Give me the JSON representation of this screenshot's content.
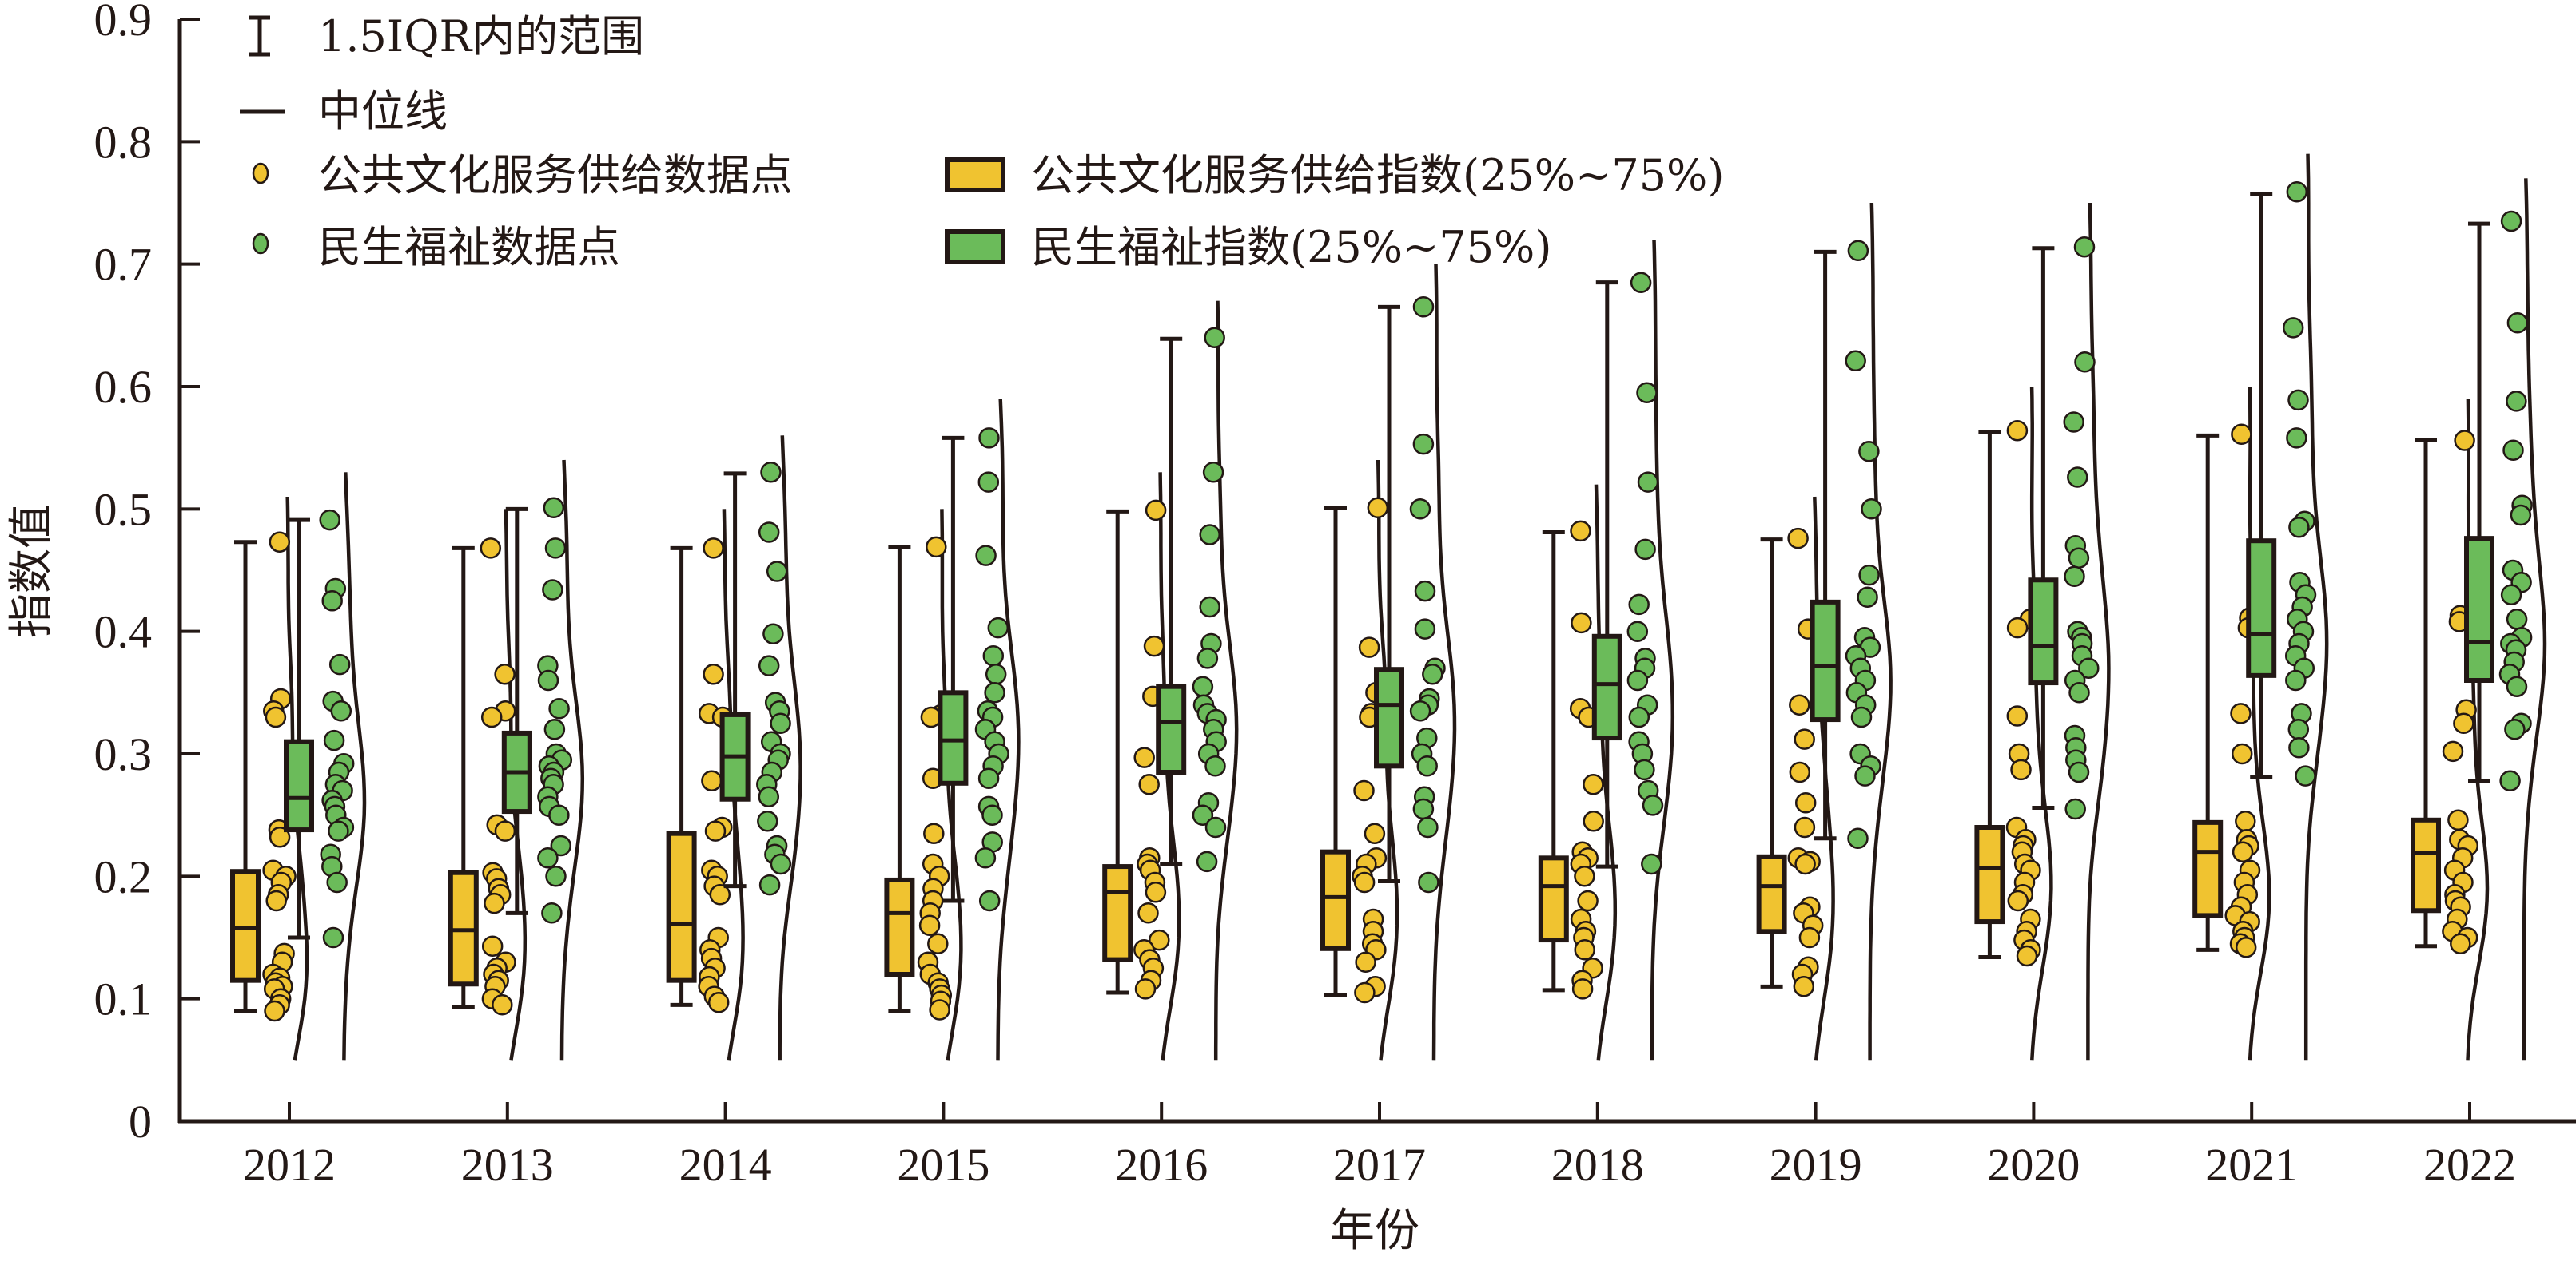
{
  "chart_data": {
    "type": "boxplot",
    "title": "",
    "xlabel": "年份",
    "ylabel": "指数值",
    "ylim": [
      0,
      0.9
    ],
    "yticks": [
      "0",
      "0.1",
      "0.2",
      "0.3",
      "0.4",
      "0.5",
      "0.6",
      "0.7",
      "0.8",
      "0.9"
    ],
    "grid": false,
    "legend_position": "top-left",
    "categories": [
      "2012",
      "2013",
      "2014",
      "2015",
      "2016",
      "2017",
      "2018",
      "2019",
      "2020",
      "2021",
      "2022"
    ],
    "legend": {
      "whisker": "1.5IQR内的范围",
      "median": "中位线",
      "points_a": "公共文化服务供给数据点",
      "points_b": "民生福祉数据点",
      "box_a": "公共文化服务供给指数(25%~75%)",
      "box_b": "民生福祉指数(25%~75%)"
    },
    "series": [
      {
        "name": "公共文化服务供给指数",
        "color": "#F0C330",
        "boxes": [
          {
            "min": 0.09,
            "q1": 0.115,
            "median": 0.158,
            "q3": 0.204,
            "max": 0.473
          },
          {
            "min": 0.093,
            "q1": 0.112,
            "median": 0.156,
            "q3": 0.203,
            "max": 0.468
          },
          {
            "min": 0.095,
            "q1": 0.115,
            "median": 0.161,
            "q3": 0.235,
            "max": 0.468
          },
          {
            "min": 0.09,
            "q1": 0.12,
            "median": 0.17,
            "q3": 0.197,
            "max": 0.469
          },
          {
            "min": 0.105,
            "q1": 0.132,
            "median": 0.187,
            "q3": 0.208,
            "max": 0.498
          },
          {
            "min": 0.103,
            "q1": 0.141,
            "median": 0.183,
            "q3": 0.22,
            "max": 0.501
          },
          {
            "min": 0.107,
            "q1": 0.148,
            "median": 0.192,
            "q3": 0.215,
            "max": 0.481
          },
          {
            "min": 0.11,
            "q1": 0.155,
            "median": 0.192,
            "q3": 0.216,
            "max": 0.475
          },
          {
            "min": 0.134,
            "q1": 0.163,
            "median": 0.207,
            "q3": 0.24,
            "max": 0.563
          },
          {
            "min": 0.14,
            "q1": 0.168,
            "median": 0.22,
            "q3": 0.244,
            "max": 0.56
          },
          {
            "min": 0.143,
            "q1": 0.172,
            "median": 0.219,
            "q3": 0.246,
            "max": 0.556
          }
        ],
        "points": [
          [
            0.473,
            0.345,
            0.335,
            0.33,
            0.238,
            0.232,
            0.205,
            0.2,
            0.195,
            0.185,
            0.18,
            0.137,
            0.13,
            0.12,
            0.117,
            0.113,
            0.11,
            0.108,
            0.1,
            0.095,
            0.09
          ],
          [
            0.468,
            0.365,
            0.335,
            0.33,
            0.242,
            0.237,
            0.203,
            0.198,
            0.19,
            0.185,
            0.178,
            0.143,
            0.13,
            0.125,
            0.12,
            0.115,
            0.11,
            0.1,
            0.095
          ],
          [
            0.468,
            0.365,
            0.333,
            0.33,
            0.278,
            0.24,
            0.237,
            0.205,
            0.2,
            0.192,
            0.185,
            0.15,
            0.14,
            0.133,
            0.125,
            0.118,
            0.11,
            0.102,
            0.097
          ],
          [
            0.469,
            0.332,
            0.33,
            0.28,
            0.235,
            0.21,
            0.2,
            0.19,
            0.18,
            0.17,
            0.16,
            0.145,
            0.13,
            0.12,
            0.113,
            0.108,
            0.103,
            0.098,
            0.091
          ],
          [
            0.499,
            0.388,
            0.347,
            0.297,
            0.275,
            0.215,
            0.21,
            0.205,
            0.195,
            0.187,
            0.17,
            0.148,
            0.14,
            0.132,
            0.125,
            0.115,
            0.108
          ],
          [
            0.501,
            0.387,
            0.35,
            0.333,
            0.33,
            0.27,
            0.235,
            0.215,
            0.21,
            0.2,
            0.195,
            0.165,
            0.155,
            0.145,
            0.14,
            0.13,
            0.11,
            0.105
          ],
          [
            0.482,
            0.407,
            0.337,
            0.33,
            0.275,
            0.245,
            0.22,
            0.215,
            0.21,
            0.2,
            0.18,
            0.165,
            0.155,
            0.15,
            0.14,
            0.125,
            0.115,
            0.108
          ],
          [
            0.476,
            0.402,
            0.34,
            0.312,
            0.285,
            0.26,
            0.24,
            0.215,
            0.212,
            0.21,
            0.175,
            0.17,
            0.16,
            0.15,
            0.126,
            0.12,
            0.11
          ],
          [
            0.564,
            0.41,
            0.403,
            0.331,
            0.3,
            0.287,
            0.24,
            0.23,
            0.225,
            0.22,
            0.21,
            0.205,
            0.195,
            0.185,
            0.18,
            0.165,
            0.155,
            0.148,
            0.14,
            0.135
          ],
          [
            0.561,
            0.411,
            0.403,
            0.333,
            0.3,
            0.245,
            0.23,
            0.225,
            0.22,
            0.205,
            0.195,
            0.185,
            0.175,
            0.168,
            0.163,
            0.155,
            0.15,
            0.145,
            0.142
          ],
          [
            0.556,
            0.413,
            0.408,
            0.336,
            0.325,
            0.302,
            0.246,
            0.23,
            0.225,
            0.215,
            0.205,
            0.195,
            0.185,
            0.18,
            0.175,
            0.165,
            0.155,
            0.15,
            0.145
          ]
        ]
      },
      {
        "name": "民生福祉指数",
        "color": "#6BBB5A",
        "boxes": [
          {
            "min": 0.15,
            "q1": 0.238,
            "median": 0.264,
            "q3": 0.31,
            "max": 0.491
          },
          {
            "min": 0.17,
            "q1": 0.253,
            "median": 0.285,
            "q3": 0.317,
            "max": 0.5
          },
          {
            "min": 0.192,
            "q1": 0.263,
            "median": 0.298,
            "q3": 0.332,
            "max": 0.529
          },
          {
            "min": 0.18,
            "q1": 0.276,
            "median": 0.311,
            "q3": 0.35,
            "max": 0.558
          },
          {
            "min": 0.21,
            "q1": 0.285,
            "median": 0.326,
            "q3": 0.355,
            "max": 0.639
          },
          {
            "min": 0.196,
            "q1": 0.29,
            "median": 0.34,
            "q3": 0.369,
            "max": 0.665
          },
          {
            "min": 0.208,
            "q1": 0.313,
            "median": 0.357,
            "q3": 0.396,
            "max": 0.685
          },
          {
            "min": 0.231,
            "q1": 0.328,
            "median": 0.372,
            "q3": 0.424,
            "max": 0.71
          },
          {
            "min": 0.256,
            "q1": 0.358,
            "median": 0.388,
            "q3": 0.442,
            "max": 0.713
          },
          {
            "min": 0.281,
            "q1": 0.364,
            "median": 0.398,
            "q3": 0.474,
            "max": 0.757
          },
          {
            "min": 0.278,
            "q1": 0.36,
            "median": 0.391,
            "q3": 0.476,
            "max": 0.733
          }
        ],
        "points": [
          [
            0.491,
            0.435,
            0.425,
            0.373,
            0.343,
            0.335,
            0.311,
            0.292,
            0.285,
            0.275,
            0.27,
            0.262,
            0.257,
            0.25,
            0.24,
            0.237,
            0.218,
            0.208,
            0.195,
            0.15
          ],
          [
            0.501,
            0.468,
            0.434,
            0.372,
            0.36,
            0.337,
            0.32,
            0.3,
            0.295,
            0.29,
            0.285,
            0.28,
            0.275,
            0.265,
            0.257,
            0.25,
            0.225,
            0.215,
            0.2,
            0.17
          ],
          [
            0.53,
            0.481,
            0.449,
            0.398,
            0.372,
            0.342,
            0.335,
            0.325,
            0.31,
            0.3,
            0.295,
            0.285,
            0.275,
            0.265,
            0.245,
            0.225,
            0.218,
            0.21,
            0.193
          ],
          [
            0.558,
            0.522,
            0.462,
            0.403,
            0.38,
            0.365,
            0.35,
            0.335,
            0.33,
            0.32,
            0.31,
            0.3,
            0.29,
            0.28,
            0.257,
            0.25,
            0.228,
            0.215,
            0.18
          ],
          [
            0.64,
            0.53,
            0.479,
            0.42,
            0.39,
            0.378,
            0.355,
            0.34,
            0.333,
            0.328,
            0.32,
            0.31,
            0.3,
            0.29,
            0.26,
            0.25,
            0.24,
            0.212
          ],
          [
            0.665,
            0.553,
            0.5,
            0.433,
            0.402,
            0.37,
            0.365,
            0.345,
            0.34,
            0.335,
            0.313,
            0.3,
            0.29,
            0.265,
            0.255,
            0.24,
            0.195
          ],
          [
            0.685,
            0.595,
            0.522,
            0.467,
            0.422,
            0.4,
            0.378,
            0.37,
            0.36,
            0.34,
            0.33,
            0.31,
            0.3,
            0.287,
            0.27,
            0.258,
            0.21
          ],
          [
            0.711,
            0.621,
            0.547,
            0.5,
            0.446,
            0.428,
            0.395,
            0.387,
            0.38,
            0.37,
            0.36,
            0.35,
            0.34,
            0.33,
            0.3,
            0.29,
            0.282,
            0.231
          ],
          [
            0.714,
            0.62,
            0.571,
            0.526,
            0.47,
            0.46,
            0.445,
            0.4,
            0.395,
            0.39,
            0.38,
            0.37,
            0.36,
            0.35,
            0.315,
            0.305,
            0.295,
            0.285,
            0.255
          ],
          [
            0.759,
            0.648,
            0.589,
            0.558,
            0.49,
            0.485,
            0.44,
            0.43,
            0.42,
            0.41,
            0.4,
            0.39,
            0.38,
            0.37,
            0.36,
            0.333,
            0.32,
            0.305,
            0.282
          ],
          [
            0.735,
            0.652,
            0.588,
            0.548,
            0.503,
            0.495,
            0.45,
            0.44,
            0.43,
            0.41,
            0.395,
            0.39,
            0.385,
            0.375,
            0.365,
            0.355,
            0.325,
            0.32,
            0.278
          ]
        ]
      }
    ]
  }
}
